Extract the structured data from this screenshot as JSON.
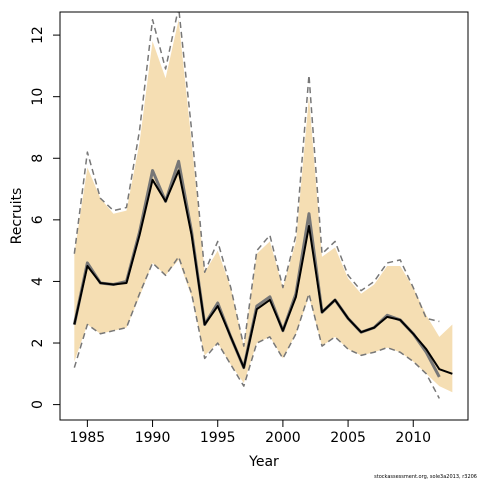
{
  "chart_data": {
    "type": "line",
    "x_label": "Year",
    "y_label": "Recruits",
    "footer": "stockassessment.org, sole3a2013, r3206",
    "x": [
      1984,
      1985,
      1986,
      1987,
      1988,
      1989,
      1990,
      1991,
      1992,
      1993,
      1994,
      1995,
      1996,
      1997,
      1998,
      1999,
      2000,
      2001,
      2002,
      2003,
      2004,
      2005,
      2006,
      2007,
      2008,
      2009,
      2010,
      2011,
      2012,
      2013
    ],
    "band": {
      "color": "#f5deb3",
      "upper": [
        4.9,
        7.7,
        6.7,
        6.2,
        6.3,
        8.5,
        11.8,
        10.6,
        12.5,
        8.5,
        4.3,
        5.0,
        3.8,
        1.9,
        4.9,
        5.3,
        3.8,
        5.3,
        10.0,
        4.8,
        5.1,
        4.1,
        3.6,
        3.9,
        4.5,
        4.5,
        3.8,
        2.9,
        2.2,
        2.6
      ],
      "lower": [
        1.4,
        2.6,
        2.3,
        2.4,
        2.5,
        3.5,
        4.6,
        4.2,
        4.7,
        3.5,
        1.6,
        2.0,
        1.3,
        0.7,
        2.0,
        2.2,
        1.5,
        2.3,
        3.5,
        1.9,
        2.2,
        1.8,
        1.6,
        1.7,
        1.85,
        1.7,
        1.4,
        1.0,
        0.6,
        0.4
      ]
    },
    "series": [
      {
        "color": "#777777",
        "dash": true,
        "width": 1.5,
        "values": [
          4.9,
          8.2,
          6.7,
          6.3,
          6.4,
          8.9,
          12.5,
          10.9,
          12.9,
          8.9,
          4.3,
          5.3,
          3.8,
          1.9,
          5.0,
          5.5,
          3.8,
          5.5,
          10.7,
          4.9,
          5.3,
          4.2,
          3.7,
          4.0,
          4.6,
          4.7,
          3.8,
          2.8,
          2.7,
          null
        ]
      },
      {
        "color": "#777777",
        "dash": true,
        "width": 1.5,
        "values": [
          1.2,
          2.6,
          2.3,
          2.4,
          2.5,
          3.6,
          4.6,
          4.2,
          4.8,
          3.6,
          1.5,
          2.0,
          1.3,
          0.6,
          2.0,
          2.2,
          1.5,
          2.3,
          3.6,
          1.9,
          2.2,
          1.8,
          1.6,
          1.7,
          1.85,
          1.7,
          1.4,
          1.0,
          0.2,
          null
        ]
      },
      {
        "color": "#777777",
        "dash": false,
        "width": 3,
        "values": [
          2.6,
          4.6,
          3.95,
          3.9,
          4.0,
          5.6,
          7.6,
          6.6,
          7.9,
          5.6,
          2.6,
          3.3,
          2.2,
          1.2,
          3.2,
          3.5,
          2.4,
          3.6,
          6.2,
          3.0,
          3.4,
          2.8,
          2.35,
          2.5,
          2.9,
          2.75,
          2.3,
          1.7,
          0.9,
          null
        ]
      },
      {
        "color": "#000000",
        "dash": false,
        "width": 2,
        "values": [
          2.6,
          4.5,
          3.95,
          3.9,
          3.95,
          5.5,
          7.3,
          6.6,
          7.6,
          5.5,
          2.6,
          3.2,
          2.2,
          1.2,
          3.1,
          3.4,
          2.4,
          3.5,
          5.8,
          3.0,
          3.4,
          2.8,
          2.35,
          2.5,
          2.85,
          2.75,
          2.3,
          1.8,
          1.15,
          1.0
        ]
      }
    ],
    "xlim": [
      1982.9,
      2014.2
    ],
    "ylim": [
      -0.5,
      12.75
    ],
    "xticks": [
      1985,
      1990,
      1995,
      2000,
      2005,
      2010
    ],
    "yticks": [
      0,
      2,
      4,
      6,
      8,
      10,
      12
    ]
  }
}
